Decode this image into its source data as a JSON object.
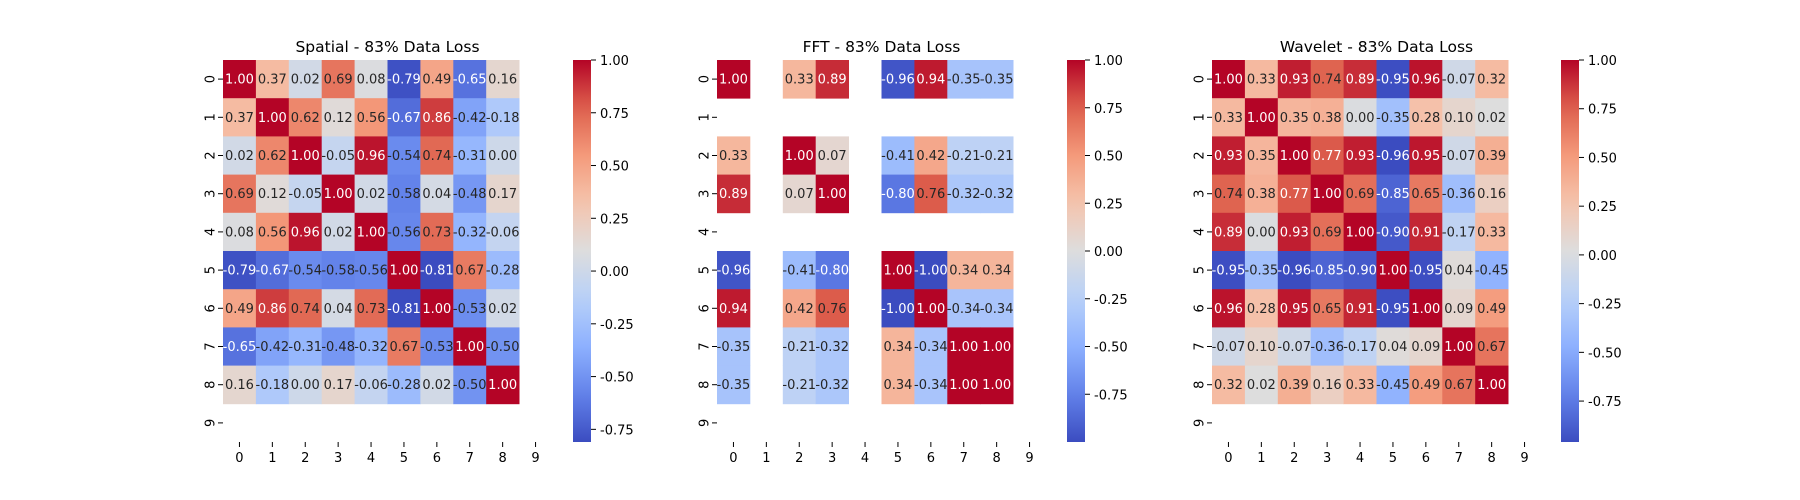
{
  "chart_data": [
    {
      "type": "heatmap",
      "title": "Spatial - 83% Data Loss",
      "x_labels": [
        "0",
        "1",
        "2",
        "3",
        "4",
        "5",
        "6",
        "7",
        "8",
        "9"
      ],
      "y_labels": [
        "0",
        "1",
        "2",
        "3",
        "4",
        "5",
        "6",
        "7",
        "8",
        "9"
      ],
      "colormap": "coolwarm",
      "vmin": -0.81,
      "vmax": 1.0,
      "colorbar_ticks": [
        "1.00",
        "0.75",
        "0.50",
        "0.25",
        "0.00",
        "-0.25",
        "-0.50",
        "-0.75"
      ],
      "values": [
        [
          1.0,
          0.37,
          0.02,
          0.69,
          0.08,
          -0.79,
          0.49,
          -0.65,
          0.16,
          null
        ],
        [
          0.37,
          1.0,
          0.62,
          0.12,
          0.56,
          -0.67,
          0.86,
          -0.42,
          -0.18,
          null
        ],
        [
          0.02,
          0.62,
          1.0,
          -0.05,
          0.96,
          -0.54,
          0.74,
          -0.31,
          0.0,
          null
        ],
        [
          0.69,
          0.12,
          -0.05,
          1.0,
          0.02,
          -0.58,
          0.04,
          -0.48,
          0.17,
          null
        ],
        [
          0.08,
          0.56,
          0.96,
          0.02,
          1.0,
          -0.56,
          0.73,
          -0.32,
          -0.06,
          null
        ],
        [
          -0.79,
          -0.67,
          -0.54,
          -0.58,
          -0.56,
          1.0,
          -0.81,
          0.67,
          -0.28,
          null
        ],
        [
          0.49,
          0.86,
          0.74,
          0.04,
          0.73,
          -0.81,
          1.0,
          -0.53,
          0.02,
          null
        ],
        [
          -0.65,
          -0.42,
          -0.31,
          -0.48,
          -0.32,
          0.67,
          -0.53,
          1.0,
          -0.5,
          null
        ],
        [
          0.16,
          -0.18,
          0.0,
          0.17,
          -0.06,
          -0.28,
          0.02,
          -0.5,
          1.0,
          null
        ],
        [
          null,
          null,
          null,
          null,
          null,
          null,
          null,
          null,
          null,
          null
        ]
      ]
    },
    {
      "type": "heatmap",
      "title": "FFT - 83% Data Loss",
      "x_labels": [
        "0",
        "1",
        "2",
        "3",
        "4",
        "5",
        "6",
        "7",
        "8",
        "9"
      ],
      "y_labels": [
        "0",
        "1",
        "2",
        "3",
        "4",
        "5",
        "6",
        "7",
        "8",
        "9"
      ],
      "colormap": "coolwarm",
      "vmin": -1.0,
      "vmax": 1.0,
      "colorbar_ticks": [
        "1.00",
        "0.75",
        "0.50",
        "0.25",
        "0.00",
        "-0.25",
        "-0.50",
        "-0.75"
      ],
      "values": [
        [
          1.0,
          null,
          0.33,
          0.89,
          null,
          -0.96,
          0.94,
          -0.35,
          -0.35,
          null
        ],
        [
          null,
          null,
          null,
          null,
          null,
          null,
          null,
          null,
          null,
          null
        ],
        [
          0.33,
          null,
          1.0,
          0.07,
          null,
          -0.41,
          0.42,
          -0.21,
          -0.21,
          null
        ],
        [
          0.89,
          null,
          0.07,
          1.0,
          null,
          -0.8,
          0.76,
          -0.32,
          -0.32,
          null
        ],
        [
          null,
          null,
          null,
          null,
          null,
          null,
          null,
          null,
          null,
          null
        ],
        [
          -0.96,
          null,
          -0.41,
          -0.8,
          null,
          1.0,
          -1.0,
          0.34,
          0.34,
          null
        ],
        [
          0.94,
          null,
          0.42,
          0.76,
          null,
          -1.0,
          1.0,
          -0.34,
          -0.34,
          null
        ],
        [
          -0.35,
          null,
          -0.21,
          -0.32,
          null,
          0.34,
          -0.34,
          1.0,
          1.0,
          null
        ],
        [
          -0.35,
          null,
          -0.21,
          -0.32,
          null,
          0.34,
          -0.34,
          1.0,
          1.0,
          null
        ],
        [
          null,
          null,
          null,
          null,
          null,
          null,
          null,
          null,
          null,
          null
        ]
      ]
    },
    {
      "type": "heatmap",
      "title": "Wavelet - 83% Data Loss",
      "x_labels": [
        "0",
        "1",
        "2",
        "3",
        "4",
        "5",
        "6",
        "7",
        "8",
        "9"
      ],
      "y_labels": [
        "0",
        "1",
        "2",
        "3",
        "4",
        "5",
        "6",
        "7",
        "8",
        "9"
      ],
      "colormap": "coolwarm",
      "vmin": -0.96,
      "vmax": 1.0,
      "colorbar_ticks": [
        "1.00",
        "0.75",
        "0.50",
        "0.25",
        "0.00",
        "-0.25",
        "-0.50",
        "-0.75"
      ],
      "values": [
        [
          1.0,
          0.33,
          0.93,
          0.74,
          0.89,
          -0.95,
          0.96,
          -0.07,
          0.32,
          null
        ],
        [
          0.33,
          1.0,
          0.35,
          0.38,
          0.0,
          -0.35,
          0.28,
          0.1,
          0.02,
          null
        ],
        [
          0.93,
          0.35,
          1.0,
          0.77,
          0.93,
          -0.96,
          0.95,
          -0.07,
          0.39,
          null
        ],
        [
          0.74,
          0.38,
          0.77,
          1.0,
          0.69,
          -0.85,
          0.65,
          -0.36,
          0.16,
          null
        ],
        [
          0.89,
          0.0,
          0.93,
          0.69,
          1.0,
          -0.9,
          0.91,
          -0.17,
          0.33,
          null
        ],
        [
          -0.95,
          -0.35,
          -0.96,
          -0.85,
          -0.9,
          1.0,
          -0.95,
          0.04,
          -0.45,
          null
        ],
        [
          0.96,
          0.28,
          0.95,
          0.65,
          0.91,
          -0.95,
          1.0,
          0.09,
          0.49,
          null
        ],
        [
          -0.07,
          0.1,
          -0.07,
          -0.36,
          -0.17,
          0.04,
          0.09,
          1.0,
          0.67,
          null
        ],
        [
          0.32,
          0.02,
          0.39,
          0.16,
          0.33,
          -0.45,
          0.49,
          0.67,
          1.0,
          null
        ],
        [
          null,
          null,
          null,
          null,
          null,
          null,
          null,
          null,
          null,
          null
        ]
      ]
    }
  ]
}
